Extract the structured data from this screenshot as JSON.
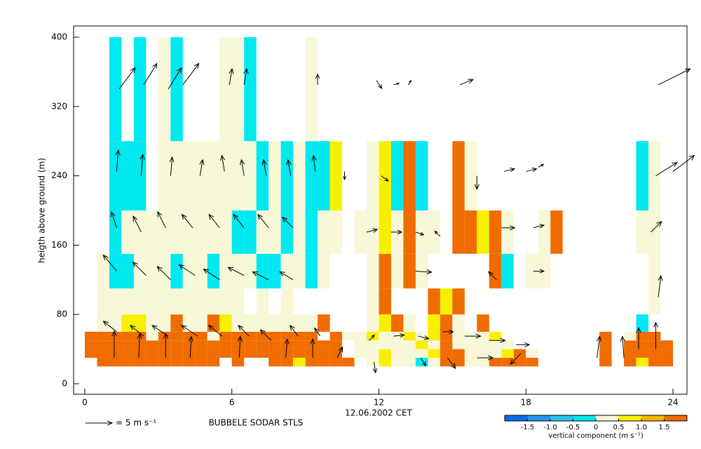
{
  "chart_data": {
    "type": "heatmap",
    "title": "BUBBELE SODAR STLS",
    "x_label": "12.06.2002 CET",
    "y_label": "heigth above ground (m)",
    "xlim": [
      0,
      24
    ],
    "xticks": [
      0,
      6,
      12,
      18,
      24
    ],
    "ylim": [
      0,
      400
    ],
    "yticks": [
      0,
      80,
      160,
      240,
      320,
      400
    ],
    "x_edges": [
      0,
      0.5,
      1,
      1.5,
      2,
      2.5,
      3,
      3.5,
      4,
      4.5,
      5,
      5.5,
      6,
      6.5,
      7,
      7.5,
      8,
      8.5,
      9,
      9.5,
      10,
      10.5,
      11,
      11.5,
      12,
      12.5,
      13,
      13.5,
      14,
      14.5,
      15,
      15.5,
      16,
      16.5,
      17,
      17.5,
      18,
      18.5,
      19,
      19.5,
      20,
      20.5,
      21,
      21.5,
      22,
      22.5,
      23,
      23.5,
      24
    ],
    "y_edges": [
      20,
      30,
      40,
      50,
      60,
      80,
      110,
      150,
      200,
      280,
      400
    ],
    "z": [
      [
        null,
        1.8,
        1.8,
        1.8,
        1.8,
        1.8,
        1.8,
        1.8,
        1.8,
        1.8,
        1.8,
        null,
        1.8,
        null,
        null,
        1.8,
        1.8,
        0.8,
        1.8,
        1.8,
        1.8,
        1.8,
        null,
        0.3,
        0.8,
        0.3,
        0.3,
        -0.3,
        0.3,
        1.8,
        1.8,
        0.3,
        0.3,
        1.8,
        1.8,
        1.8,
        1.8,
        null,
        null,
        null,
        null,
        null,
        1.8,
        null,
        1.8,
        0.8,
        1.8,
        1.8
      ],
      [
        1.8,
        1.8,
        1.8,
        1.8,
        1.8,
        1.8,
        1.8,
        1.8,
        1.8,
        1.8,
        1.8,
        1.8,
        1.8,
        1.8,
        1.8,
        1.8,
        1.8,
        1.8,
        1.8,
        1.8,
        1.8,
        null,
        0.3,
        0.3,
        0.8,
        0.3,
        0.3,
        0.3,
        0.8,
        1.8,
        1.8,
        0.3,
        0.3,
        0.3,
        0.8,
        1.8,
        0.3,
        null,
        null,
        null,
        null,
        null,
        1.8,
        null,
        1.8,
        1.8,
        1.8,
        1.8
      ],
      [
        1.8,
        1.8,
        1.8,
        1.8,
        1.8,
        1.8,
        1.8,
        1.8,
        1.8,
        1.8,
        1.8,
        1.8,
        1.8,
        1.8,
        1.8,
        1.8,
        1.8,
        1.8,
        1.8,
        1.8,
        1.8,
        null,
        0.3,
        0.3,
        0.3,
        0.3,
        0.3,
        0.8,
        0.3,
        1.8,
        0.3,
        0.3,
        0.3,
        0.3,
        0.3,
        null,
        null,
        null,
        null,
        null,
        null,
        null,
        1.8,
        null,
        1.8,
        1.8,
        1.8,
        1.8
      ],
      [
        1.8,
        1.8,
        1.8,
        1.8,
        1.8,
        0.3,
        1.8,
        1.8,
        1.8,
        1.8,
        0.3,
        1.8,
        1.8,
        1.8,
        1.8,
        1.8,
        1.8,
        1.8,
        1.8,
        null,
        1.8,
        0.3,
        0.3,
        0.8,
        0.3,
        0.3,
        0.8,
        0.3,
        0.8,
        1.8,
        0.3,
        0.3,
        0.3,
        0.8,
        null,
        null,
        null,
        null,
        null,
        null,
        null,
        null,
        1.8,
        null,
        0.3,
        1.8,
        1.8,
        null
      ],
      [
        null,
        0.3,
        0.3,
        0.8,
        0.8,
        0.3,
        0.3,
        1.8,
        0.3,
        0.3,
        1.8,
        0.8,
        0.3,
        0.3,
        0.3,
        0.3,
        0.3,
        0.3,
        0.3,
        1.8,
        null,
        null,
        null,
        0.3,
        0.8,
        1.8,
        0.3,
        null,
        0.8,
        1.8,
        0.3,
        null,
        1.8,
        null,
        null,
        null,
        null,
        null,
        null,
        null,
        null,
        null,
        null,
        null,
        null,
        -0.3,
        null,
        null
      ],
      [
        null,
        0.3,
        0.3,
        0.3,
        0.3,
        0.3,
        0.3,
        0.3,
        0.3,
        0.3,
        0.3,
        0.3,
        0.3,
        null,
        0.3,
        null,
        0.3,
        null,
        null,
        null,
        null,
        null,
        null,
        0.3,
        1.8,
        null,
        null,
        null,
        1.8,
        0.8,
        1.8,
        null,
        null,
        null,
        null,
        null,
        null,
        null,
        null,
        null,
        null,
        null,
        null,
        null,
        null,
        null,
        0.3,
        null
      ],
      [
        null,
        0.3,
        -0.3,
        -0.3,
        0.3,
        0.3,
        0.3,
        -0.3,
        0.3,
        0.3,
        -0.3,
        0.3,
        0.3,
        0.3,
        -0.3,
        -0.3,
        0.3,
        0.3,
        -0.3,
        0.3,
        null,
        null,
        null,
        0.3,
        1.8,
        0.3,
        1.8,
        0.3,
        null,
        null,
        null,
        null,
        null,
        1.8,
        -0.3,
        null,
        0.3,
        0.3,
        null,
        null,
        null,
        null,
        null,
        null,
        null,
        null,
        0.3,
        null
      ],
      [
        null,
        null,
        -0.3,
        0.3,
        0.3,
        0.3,
        0.3,
        0.3,
        0.3,
        0.3,
        0.3,
        0.3,
        -0.3,
        -0.3,
        0.3,
        0.3,
        -0.3,
        0.3,
        -0.3,
        0.3,
        0.3,
        null,
        0.3,
        0.3,
        0.8,
        0.3,
        1.8,
        0.3,
        0.3,
        null,
        1.8,
        1.8,
        0.8,
        1.8,
        0.3,
        null,
        null,
        0.3,
        1.8,
        null,
        null,
        null,
        null,
        null,
        null,
        0.3,
        0.3,
        null
      ],
      [
        null,
        null,
        -0.3,
        -0.3,
        -0.3,
        null,
        0.3,
        0.3,
        0.3,
        0.3,
        0.3,
        0.3,
        0.3,
        0.3,
        -0.3,
        0.3,
        -0.3,
        0.3,
        -0.3,
        -0.3,
        0.8,
        null,
        null,
        0.3,
        0.8,
        -0.3,
        1.8,
        -0.3,
        null,
        null,
        1.8,
        0.3,
        null,
        null,
        null,
        null,
        null,
        null,
        null,
        null,
        null,
        null,
        null,
        null,
        null,
        -0.3,
        0.3,
        null
      ],
      [
        null,
        null,
        -0.3,
        null,
        -0.3,
        null,
        0.3,
        -0.3,
        null,
        null,
        null,
        0.3,
        0.3,
        -0.3,
        null,
        null,
        null,
        null,
        0.3,
        null,
        null,
        null,
        null,
        null,
        null,
        null,
        null,
        null,
        null,
        null,
        null,
        null,
        null,
        null,
        null,
        null,
        null,
        null,
        null,
        null,
        null,
        null,
        null,
        null,
        null,
        null,
        null,
        null
      ]
    ],
    "vectors": {
      "x": [
        1.4,
        2.4,
        3.4,
        4.0,
        5.9,
        6.5,
        9.5,
        11.9,
        12.6,
        13.2,
        15.3,
        23.4,
        1.3,
        2.3,
        3.5,
        4.7,
        5.7,
        6.5,
        7.4,
        8.4,
        9.4,
        10.6,
        12.1,
        16.0,
        17.1,
        18.0,
        18.5,
        23.3,
        24,
        1.3,
        2.3,
        3.3,
        4.4,
        5.5,
        6.5,
        7.5,
        8.5,
        11.5,
        12.5,
        13.5,
        14.5,
        17.0,
        18.3,
        23.1,
        1.3,
        2.5,
        3.5,
        4.5,
        5.5,
        6.5,
        7.5,
        8.5,
        13.5,
        16.8,
        18.3,
        23.4,
        1.3,
        2.4,
        3.4,
        4.6,
        5.6,
        6.7,
        7.6,
        8.7,
        9.6,
        11.6,
        12.6,
        13.6,
        14.6,
        15.5,
        16.5,
        17.6,
        22.6,
        23.3,
        1.2,
        2.2,
        3.3,
        4.3,
        6.3,
        8.2,
        9.3,
        10.3,
        11.8,
        13.7,
        14.8,
        16.0,
        17.8,
        20.9,
        22.0
      ],
      "y": [
        340,
        345,
        340,
        345,
        345,
        345,
        345,
        350,
        345,
        345,
        345,
        345,
        245,
        240,
        240,
        240,
        245,
        240,
        240,
        240,
        245,
        245,
        240,
        240,
        245,
        245,
        250,
        240,
        245,
        180,
        175,
        180,
        180,
        180,
        180,
        180,
        180,
        175,
        175,
        175,
        170,
        180,
        180,
        175,
        130,
        125,
        120,
        125,
        120,
        125,
        120,
        120,
        130,
        120,
        130,
        100,
        60,
        55,
        55,
        55,
        55,
        55,
        50,
        55,
        55,
        50,
        55,
        55,
        60,
        55,
        50,
        45,
        40,
        40,
        30,
        30,
        30,
        30,
        30,
        30,
        30,
        30,
        25,
        30,
        30,
        30,
        35,
        30,
        30
      ],
      "u": [
        3,
        2.5,
        2.5,
        3,
        0.5,
        0.5,
        0,
        1,
        1,
        0.5,
        2.5,
        6,
        0.3,
        0.3,
        0.3,
        0.5,
        -0.5,
        -0.5,
        -0.5,
        -0.5,
        -0.3,
        0,
        1.3,
        0,
        2,
        2,
        1,
        4,
        4,
        -1,
        -1.5,
        -1.5,
        -2,
        -2,
        -2,
        -2,
        -2,
        2,
        2,
        1.5,
        -1,
        2.5,
        2,
        2,
        -2.5,
        -2.5,
        -2.5,
        -3,
        -3,
        -3,
        -3,
        -2.5,
        3,
        -1.5,
        2,
        0.5,
        -2.5,
        -2.5,
        -3,
        -3,
        -2.5,
        -2,
        -2,
        -1.5,
        -1,
        1,
        2,
        2,
        2,
        3,
        3,
        2.5,
        0,
        0,
        0,
        0.2,
        0,
        0.2,
        0.2,
        0.3,
        0,
        1,
        0.3,
        1,
        1.5,
        3,
        -2,
        0.5,
        -0.3
      ],
      "v": [
        4,
        4,
        4,
        4,
        3,
        3,
        2,
        -1.5,
        0.3,
        0.8,
        1,
        3,
        4,
        4,
        3.5,
        3,
        3,
        3,
        3,
        3,
        3,
        -1.5,
        -1,
        -2.5,
        0.5,
        0.5,
        0.5,
        2.5,
        3,
        3,
        3,
        3,
        2.5,
        2.5,
        2.5,
        2.5,
        2,
        0.5,
        0,
        -0.5,
        1,
        0,
        0.5,
        2,
        3,
        2.5,
        2.5,
        2,
        2,
        1.5,
        1.5,
        1.5,
        -0.2,
        1.5,
        0,
        4,
        2,
        2,
        2,
        2,
        2,
        2,
        2,
        2,
        1.5,
        1,
        0.2,
        -0.5,
        0,
        0,
        0,
        0,
        4,
        5,
        5,
        4.5,
        4.5,
        4,
        4,
        3.5,
        3.5,
        2,
        -2,
        -1.5,
        -2,
        0,
        -2,
        4,
        4
      ]
    },
    "reference_arrow": {
      "value": 5,
      "label": "= 5 m s⁻¹"
    },
    "colorbar": {
      "label": "vertical component (m s⁻¹)",
      "levels": [
        -2,
        -1.5,
        -1,
        -0.5,
        0,
        0.5,
        1,
        1.5,
        2
      ],
      "colors": [
        "#0a6ee6",
        "#2a96f0",
        "#28c4ee",
        "#00e8f0",
        "#f8f8d8",
        "#f8f000",
        "#f8b400",
        "#f06c00"
      ],
      "ticks": [
        -1.5,
        {
          "value": -1,
          "label": "-1.0"
        },
        -0.5,
        0,
        0.5,
        {
          "value": 1,
          "label": "1.0"
        },
        1.5
      ]
    }
  }
}
